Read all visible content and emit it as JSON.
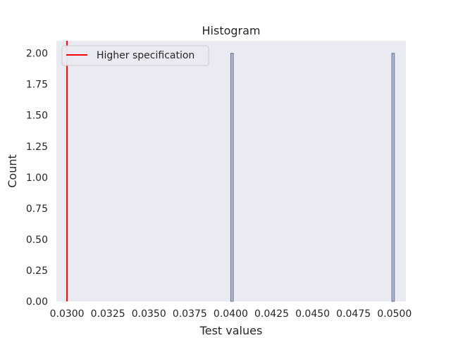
{
  "chart_data": {
    "type": "bar",
    "title": "Histogram",
    "xlabel": "Test values",
    "ylabel": "Count",
    "xlim": [
      0.02935,
      0.0507
    ],
    "ylim": [
      0,
      2.1
    ],
    "xticks": [
      "0.0300",
      "0.0325",
      "0.0350",
      "0.0375",
      "0.0400",
      "0.0425",
      "0.0450",
      "0.0475",
      "0.0500"
    ],
    "yticks": [
      "0.00",
      "0.25",
      "0.50",
      "0.75",
      "1.00",
      "1.25",
      "1.50",
      "1.75",
      "2.00"
    ],
    "grid": false,
    "legend_position": "top-left",
    "bins": [
      {
        "x0": 0.04,
        "x1": 0.04016,
        "count": 2
      },
      {
        "x0": 0.04984,
        "x1": 0.05,
        "count": 2
      }
    ],
    "reference_lines": [
      {
        "name": "Higher specification",
        "x": 0.03,
        "color": "#ff0000"
      }
    ],
    "colors": {
      "background": "#eaeaf2",
      "bar_fill": "#a9b7d1",
      "bar_edge": "#6d7891"
    }
  }
}
